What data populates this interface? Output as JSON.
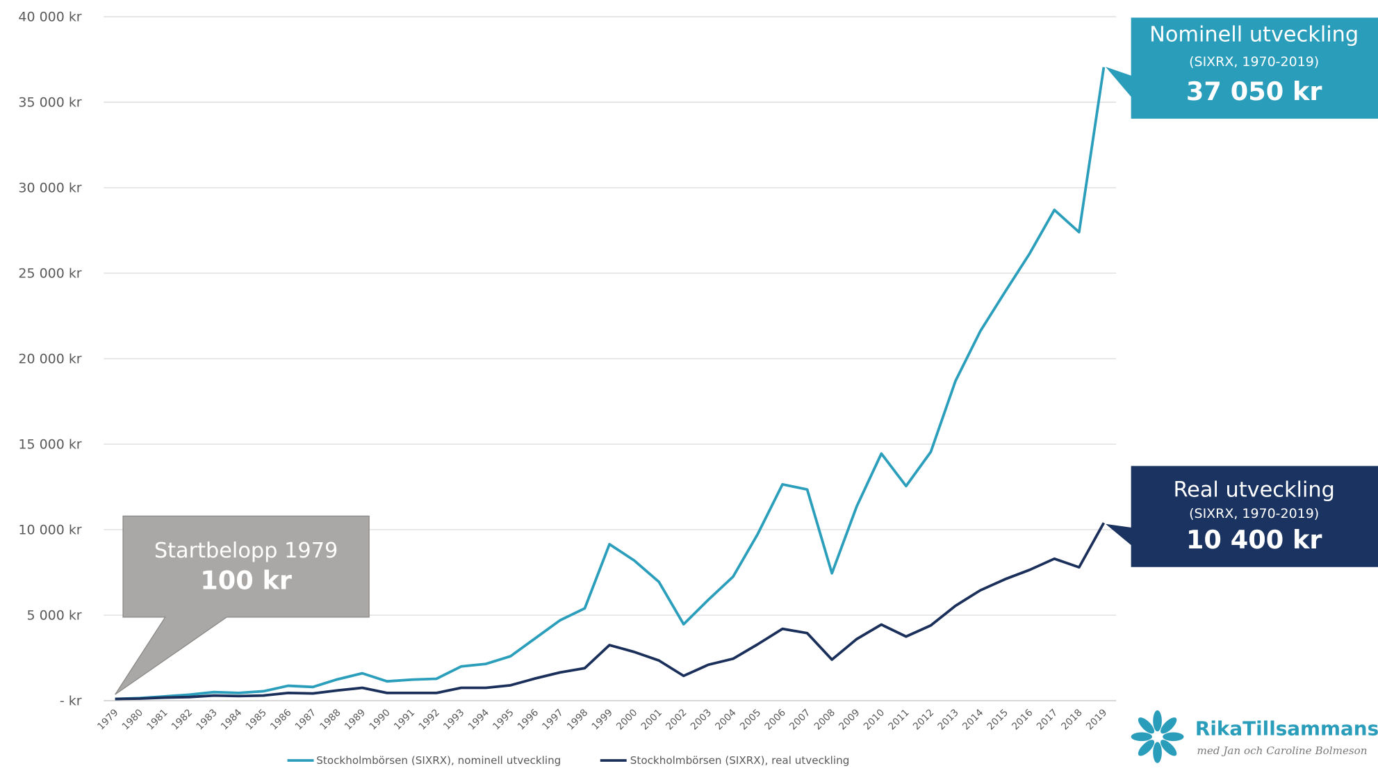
{
  "chart_data": {
    "type": "line",
    "categories": [
      "1979",
      "1980",
      "1981",
      "1982",
      "1983",
      "1984",
      "1985",
      "1986",
      "1987",
      "1988",
      "1989",
      "1990",
      "1991",
      "1992",
      "1993",
      "1994",
      "1995",
      "1996",
      "1997",
      "1998",
      "1999",
      "2000",
      "2001",
      "2002",
      "2003",
      "2004",
      "2005",
      "2006",
      "2007",
      "2008",
      "2009",
      "2010",
      "2011",
      "2012",
      "2013",
      "2014",
      "2015",
      "2016",
      "2017",
      "2018",
      "2019"
    ],
    "series": [
      {
        "name": "Stockholmbörsen (SIXRX), nominell utveckling",
        "color": "#2b9ebb",
        "values": [
          100,
          150,
          250,
          350,
          500,
          450,
          550,
          870,
          800,
          1250,
          1600,
          1130,
          1230,
          1280,
          2000,
          2150,
          2600,
          3650,
          4700,
          5400,
          9150,
          8200,
          6950,
          4470,
          5900,
          7250,
          9750,
          12650,
          12350,
          7450,
          11350,
          14450,
          12550,
          14550,
          18700,
          21600,
          23900,
          26150,
          28700,
          27400,
          37050
        ]
      },
      {
        "name": "Stockholmbörsen (SIXRX), real utveckling",
        "color": "#1b2f5b",
        "values": [
          100,
          120,
          180,
          210,
          300,
          270,
          300,
          450,
          420,
          600,
          750,
          450,
          450,
          450,
          750,
          750,
          900,
          1300,
          1650,
          1900,
          3250,
          2850,
          2350,
          1450,
          2100,
          2450,
          3300,
          4200,
          3950,
          2400,
          3600,
          4450,
          3750,
          4400,
          5550,
          6450,
          7100,
          7650,
          8300,
          7800,
          10400
        ]
      }
    ],
    "ylim": [
      0,
      40000
    ],
    "yticks": [
      {
        "value": 0,
        "label": "- kr"
      },
      {
        "value": 5000,
        "label": "5 000 kr"
      },
      {
        "value": 10000,
        "label": "10 000 kr"
      },
      {
        "value": 15000,
        "label": "15 000 kr"
      },
      {
        "value": 20000,
        "label": "20 000 kr"
      },
      {
        "value": 25000,
        "label": "25 000 kr"
      },
      {
        "value": 30000,
        "label": "30 000 kr"
      },
      {
        "value": 35000,
        "label": "35 000 kr"
      },
      {
        "value": 40000,
        "label": "40 000 kr"
      }
    ],
    "grid": true,
    "annotations": [
      {
        "title": "Nominell utveckling",
        "subtitle": "(SIXRX, 1970-2019)",
        "value": "37 050 kr"
      },
      {
        "title": "Real utveckling",
        "subtitle": "(SIXRX, 1970-2019)",
        "value": "10 400 kr"
      },
      {
        "title": "Startbelopp 1979",
        "value": "100 kr"
      }
    ],
    "logo": {
      "name": "RikaTillsammans",
      "tagline": "med Jan och Caroline Bolmeson"
    }
  }
}
